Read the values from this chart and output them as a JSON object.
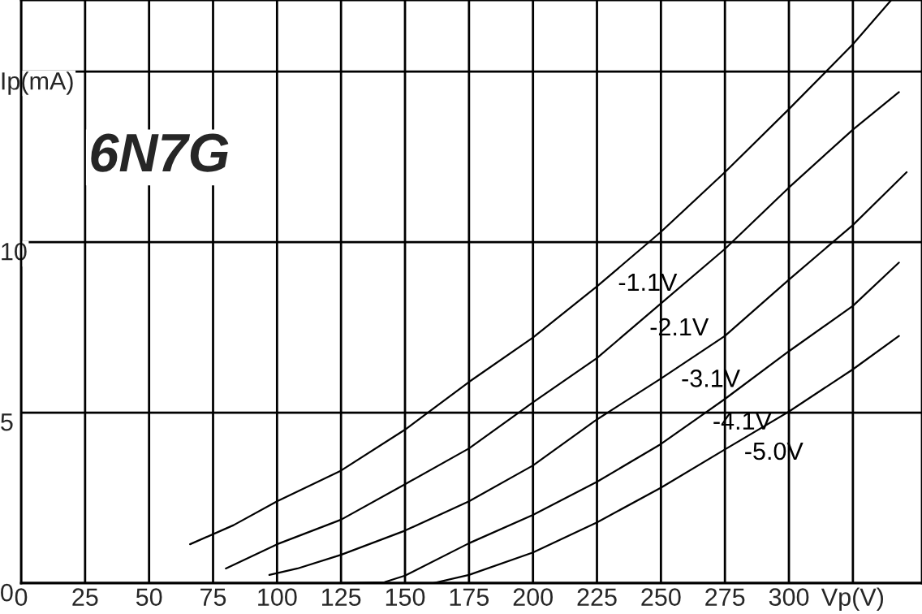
{
  "chart_data": {
    "type": "line",
    "title": "6N7G",
    "xlim": [
      0,
      352
    ],
    "ylim": [
      0,
      17.1
    ],
    "xticks": [
      0,
      25,
      50,
      75,
      100,
      125,
      150,
      175,
      200,
      225,
      250,
      275,
      300,
      {
        "value": 325,
        "label": "Vp(V)"
      }
    ],
    "yticks": [
      0,
      5,
      10,
      {
        "value": 15,
        "label": "Ip(mA)"
      }
    ],
    "grid": true,
    "legend": false,
    "marker": "none",
    "line_style": "solid",
    "series": [
      {
        "name": "-1.1V",
        "color": "#000000",
        "x": [
          66,
          83,
          100,
          125,
          150,
          175,
          200,
          225,
          250,
          275,
          300,
          325,
          340
        ],
        "values": [
          1.14,
          1.7,
          2.4,
          3.3,
          4.5,
          5.9,
          7.2,
          8.7,
          10.3,
          12.05,
          13.9,
          15.8,
          17.1
        ]
      },
      {
        "name": "-2.1V",
        "color": "#000000",
        "x": [
          80,
          100,
          125,
          150,
          175,
          200,
          225,
          250,
          275,
          300,
          325,
          343
        ],
        "values": [
          0.43,
          1.14,
          1.86,
          2.9,
          3.95,
          5.3,
          6.6,
          8.2,
          9.8,
          11.6,
          13.3,
          14.4
        ]
      },
      {
        "name": "-3.1V",
        "color": "#000000",
        "x": [
          97,
          108,
          125,
          150,
          175,
          200,
          225,
          250,
          275,
          300,
          325,
          346
        ],
        "values": [
          0.24,
          0.43,
          0.83,
          1.54,
          2.4,
          3.45,
          4.8,
          6.0,
          7.25,
          8.9,
          10.5,
          12.05
        ]
      },
      {
        "name": "-4.1V",
        "color": "#000000",
        "x": [
          123,
          142,
          150,
          175,
          200,
          225,
          250,
          275,
          300,
          325,
          343
        ],
        "values": [
          0.0,
          0.03,
          0.22,
          1.17,
          2.0,
          2.97,
          4.08,
          5.4,
          6.8,
          8.13,
          9.4
        ]
      },
      {
        "name": "-5.0V",
        "color": "#000000",
        "x": [
          161,
          175,
          200,
          225,
          250,
          275,
          300,
          325,
          343
        ],
        "values": [
          0.0,
          0.24,
          0.9,
          1.78,
          2.8,
          3.92,
          5.03,
          6.27,
          7.25
        ]
      }
    ]
  }
}
